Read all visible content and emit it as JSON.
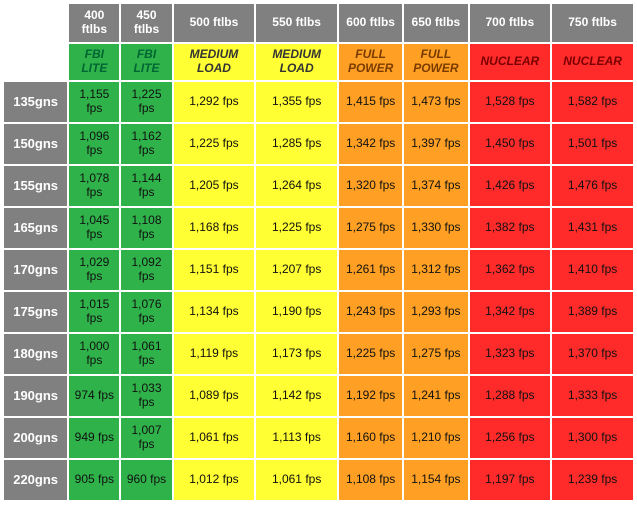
{
  "energy_cols": [
    {
      "label": "400 ftlbs",
      "cls": "g",
      "cat": "FBI LITE"
    },
    {
      "label": "450 ftlbs",
      "cls": "g",
      "cat": "FBI LITE"
    },
    {
      "label": "500 ftlbs",
      "cls": "y",
      "cat": "MEDIUM LOAD"
    },
    {
      "label": "550 ftlbs",
      "cls": "y",
      "cat": "MEDIUM LOAD"
    },
    {
      "label": "600 ftlbs",
      "cls": "o",
      "cat": "FULL POWER"
    },
    {
      "label": "650 ftlbs",
      "cls": "o",
      "cat": "FULL POWER"
    },
    {
      "label": "700 ftlbs",
      "cls": "r",
      "cat": "NUCLEAR"
    },
    {
      "label": "750 ftlbs",
      "cls": "r",
      "cat": "NUCLEAR"
    }
  ],
  "rows": [
    {
      "w": "135gns",
      "v": [
        "1,155 fps",
        "1,225 fps",
        "1,292 fps",
        "1,355 fps",
        "1,415 fps",
        "1,473 fps",
        "1,528 fps",
        "1,582 fps"
      ]
    },
    {
      "w": "150gns",
      "v": [
        "1,096 fps",
        "1,162 fps",
        "1,225 fps",
        "1,285 fps",
        "1,342 fps",
        "1,397 fps",
        "1,450 fps",
        "1,501 fps"
      ]
    },
    {
      "w": "155gns",
      "v": [
        "1,078 fps",
        "1,144 fps",
        "1,205 fps",
        "1,264 fps",
        "1,320 fps",
        "1,374 fps",
        "1,426 fps",
        "1,476 fps"
      ]
    },
    {
      "w": "165gns",
      "v": [
        "1,045 fps",
        "1,108 fps",
        "1,168 fps",
        "1,225 fps",
        "1,275 fps",
        "1,330 fps",
        "1,382 fps",
        "1,431 fps"
      ]
    },
    {
      "w": "170gns",
      "v": [
        "1,029 fps",
        "1,092 fps",
        "1,151 fps",
        "1,207 fps",
        "1,261 fps",
        "1,312 fps",
        "1,362 fps",
        "1,410 fps"
      ]
    },
    {
      "w": "175gns",
      "v": [
        "1,015 fps",
        "1,076 fps",
        "1,134 fps",
        "1,190 fps",
        "1,243 fps",
        "1,293 fps",
        "1,342 fps",
        "1,389 fps"
      ]
    },
    {
      "w": "180gns",
      "v": [
        "1,000 fps",
        "1,061 fps",
        "1,119 fps",
        "1,173 fps",
        "1,225 fps",
        "1,275 fps",
        "1,323 fps",
        "1,370 fps"
      ]
    },
    {
      "w": "190gns",
      "v": [
        "974 fps",
        "1,033 fps",
        "1,089 fps",
        "1,142 fps",
        "1,192 fps",
        "1,241 fps",
        "1,288 fps",
        "1,333 fps"
      ]
    },
    {
      "w": "200gns",
      "v": [
        "949 fps",
        "1,007 fps",
        "1,061 fps",
        "1,113 fps",
        "1,160 fps",
        "1,210 fps",
        "1,256 fps",
        "1,300 fps"
      ]
    },
    {
      "w": "220gns",
      "v": [
        "905 fps",
        "960 fps",
        "1,012 fps",
        "1,061 fps",
        "1,108 fps",
        "1,154 fps",
        "1,197 fps",
        "1,239 fps"
      ]
    }
  ],
  "colors": {
    "g": "#2fb24a",
    "y": "#ffff33",
    "o": "#ffa024",
    "r": "#ff2b2b",
    "hdr": "#808080"
  }
}
